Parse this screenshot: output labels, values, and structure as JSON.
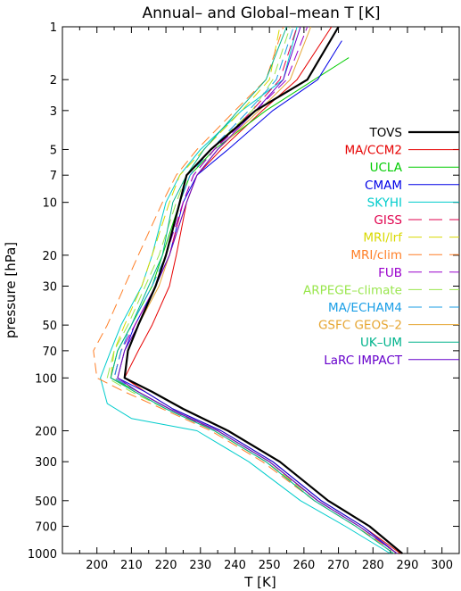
{
  "chart_data": {
    "type": "line",
    "title": "Annual– and Global–mean T [K]",
    "xlabel": "T [K]",
    "ylabel": "pressure [hPa]",
    "xlim": [
      190,
      305
    ],
    "ylim": [
      1000,
      1
    ],
    "y_scale": "log",
    "x_ticks": [
      200,
      210,
      220,
      230,
      240,
      250,
      260,
      270,
      280,
      290,
      300
    ],
    "y_ticks": [
      1000,
      700,
      500,
      300,
      200,
      100,
      70,
      50,
      30,
      20,
      10,
      7,
      5,
      3,
      2,
      1
    ],
    "legend_position": "right",
    "grid": false,
    "series": [
      {
        "name": "TOVS",
        "color": "#000000",
        "dash": "solid",
        "width": 2.2,
        "points": [
          [
            288.5,
            1000
          ],
          [
            279,
            700
          ],
          [
            267,
            500
          ],
          [
            253,
            300
          ],
          [
            238,
            200
          ],
          [
            225,
            150
          ],
          [
            216,
            120
          ],
          [
            208,
            100
          ],
          [
            209,
            70
          ],
          [
            212,
            50
          ],
          [
            217,
            30
          ],
          [
            220,
            20
          ],
          [
            224,
            10
          ],
          [
            226,
            7
          ],
          [
            233,
            5
          ],
          [
            246,
            3
          ],
          [
            261,
            2
          ],
          [
            270,
            1
          ]
        ]
      },
      {
        "name": "MA/CCM2",
        "color": "#e60000",
        "dash": "solid",
        "width": 1,
        "points": [
          [
            288,
            1000
          ],
          [
            277,
            700
          ],
          [
            265,
            500
          ],
          [
            251,
            300
          ],
          [
            236,
            200
          ],
          [
            222,
            150
          ],
          [
            214,
            120
          ],
          [
            208,
            100
          ],
          [
            212,
            70
          ],
          [
            216,
            50
          ],
          [
            221,
            30
          ],
          [
            223,
            20
          ],
          [
            226,
            10
          ],
          [
            229,
            7
          ],
          [
            236,
            5
          ],
          [
            248,
            3
          ],
          [
            258,
            2
          ],
          [
            268,
            1
          ]
        ]
      },
      {
        "name": "UCLA",
        "color": "#00cc00",
        "dash": "solid",
        "width": 1,
        "points": [
          [
            287,
            1000
          ],
          [
            276,
            700
          ],
          [
            264,
            500
          ],
          [
            250,
            300
          ],
          [
            235,
            200
          ],
          [
            221,
            150
          ],
          [
            212,
            120
          ],
          [
            204,
            100
          ],
          [
            206,
            70
          ],
          [
            210,
            50
          ],
          [
            216,
            30
          ],
          [
            219,
            20
          ],
          [
            224,
            10
          ],
          [
            227,
            7
          ],
          [
            234,
            5
          ],
          [
            249,
            3
          ],
          [
            263,
            2
          ],
          [
            273,
            1.5
          ]
        ]
      },
      {
        "name": "CMAM",
        "color": "#0000e6",
        "dash": "solid",
        "width": 1,
        "points": [
          [
            287,
            1000
          ],
          [
            277,
            700
          ],
          [
            265,
            500
          ],
          [
            251,
            300
          ],
          [
            236,
            200
          ],
          [
            222,
            150
          ],
          [
            214,
            120
          ],
          [
            206,
            100
          ],
          [
            208,
            70
          ],
          [
            211,
            50
          ],
          [
            217,
            30
          ],
          [
            221,
            20
          ],
          [
            225,
            10
          ],
          [
            229,
            7
          ],
          [
            238,
            5
          ],
          [
            251,
            3
          ],
          [
            264,
            2
          ],
          [
            271,
            1.2
          ]
        ]
      },
      {
        "name": "SKYHI",
        "color": "#00cccc",
        "dash": "solid",
        "width": 1,
        "points": [
          [
            285,
            1000
          ],
          [
            272,
            700
          ],
          [
            259,
            500
          ],
          [
            244,
            300
          ],
          [
            229,
            200
          ],
          [
            210,
            170
          ],
          [
            203,
            140
          ],
          [
            201,
            100
          ],
          [
            204,
            70
          ],
          [
            207,
            50
          ],
          [
            213,
            30
          ],
          [
            216,
            20
          ],
          [
            220,
            10
          ],
          [
            224,
            7
          ],
          [
            230,
            5
          ],
          [
            242,
            3
          ],
          [
            254,
            2
          ],
          [
            258,
            1
          ]
        ]
      },
      {
        "name": "GISS",
        "color": "#e0004d",
        "dash": "12,6",
        "width": 1,
        "points": [
          [
            287,
            1000
          ],
          [
            276,
            700
          ],
          [
            264,
            500
          ],
          [
            249,
            300
          ],
          [
            234,
            200
          ],
          [
            221,
            150
          ],
          [
            212,
            120
          ],
          [
            205,
            100
          ],
          [
            207,
            70
          ],
          [
            211,
            50
          ],
          [
            217,
            30
          ],
          [
            221,
            20
          ],
          [
            225,
            10
          ],
          [
            228,
            7
          ],
          [
            234,
            5
          ],
          [
            245,
            3
          ],
          [
            253,
            2
          ],
          [
            258,
            1
          ]
        ]
      },
      {
        "name": "MRI/lrf",
        "color": "#d9d900",
        "dash": "12,6",
        "width": 1,
        "points": [
          [
            287,
            1000
          ],
          [
            276,
            700
          ],
          [
            264,
            500
          ],
          [
            249,
            300
          ],
          [
            234,
            200
          ],
          [
            220,
            150
          ],
          [
            211,
            120
          ],
          [
            204,
            100
          ],
          [
            205,
            70
          ],
          [
            208,
            50
          ],
          [
            213,
            30
          ],
          [
            216,
            20
          ],
          [
            221,
            10
          ],
          [
            224,
            7
          ],
          [
            231,
            5
          ],
          [
            242,
            3
          ],
          [
            250,
            2
          ],
          [
            253,
            1
          ]
        ]
      },
      {
        "name": "MRI/clim",
        "color": "#ff7f27",
        "dash": "12,6",
        "width": 1,
        "points": [
          [
            287,
            1000
          ],
          [
            275,
            700
          ],
          [
            263,
            500
          ],
          [
            248,
            300
          ],
          [
            233,
            200
          ],
          [
            219,
            150
          ],
          [
            208,
            120
          ],
          [
            200,
            100
          ],
          [
            199,
            70
          ],
          [
            203,
            50
          ],
          [
            208,
            30
          ],
          [
            212,
            20
          ],
          [
            219,
            10
          ],
          [
            223,
            7
          ],
          [
            229,
            5
          ],
          [
            240,
            3
          ],
          [
            249,
            2
          ],
          [
            254,
            1
          ]
        ]
      },
      {
        "name": "FUB",
        "color": "#9900cc",
        "dash": "12,6",
        "width": 1,
        "points": [
          [
            287,
            1000
          ],
          [
            276,
            700
          ],
          [
            264,
            500
          ],
          [
            250,
            300
          ],
          [
            235,
            200
          ],
          [
            221,
            150
          ],
          [
            212,
            120
          ],
          [
            205,
            100
          ],
          [
            207,
            70
          ],
          [
            211,
            50
          ],
          [
            217,
            30
          ],
          [
            220,
            20
          ],
          [
            225,
            10
          ],
          [
            228,
            7
          ],
          [
            234,
            5
          ],
          [
            246,
            3
          ],
          [
            255,
            2
          ],
          [
            261,
            1
          ]
        ]
      },
      {
        "name": "ARPEGE–climate",
        "color": "#99e64d",
        "dash": "12,6",
        "width": 1,
        "points": [
          [
            286,
            1000
          ],
          [
            275,
            700
          ],
          [
            263,
            500
          ],
          [
            249,
            300
          ],
          [
            234,
            200
          ],
          [
            220,
            150
          ],
          [
            210,
            120
          ],
          [
            203,
            100
          ],
          [
            205,
            70
          ],
          [
            209,
            50
          ],
          [
            214,
            30
          ],
          [
            218,
            20
          ],
          [
            223,
            10
          ],
          [
            226,
            7
          ],
          [
            233,
            5
          ],
          [
            245,
            3
          ],
          [
            251,
            2
          ],
          [
            256,
            1
          ]
        ]
      },
      {
        "name": "MA/ECHAM4",
        "color": "#1a9ee6",
        "dash": "12,6",
        "width": 1,
        "points": [
          [
            287,
            1000
          ],
          [
            276,
            700
          ],
          [
            264,
            500
          ],
          [
            250,
            300
          ],
          [
            235,
            200
          ],
          [
            221,
            150
          ],
          [
            212,
            120
          ],
          [
            205,
            100
          ],
          [
            207,
            70
          ],
          [
            210,
            50
          ],
          [
            216,
            30
          ],
          [
            220,
            20
          ],
          [
            224,
            10
          ],
          [
            227,
            7
          ],
          [
            233,
            5
          ],
          [
            244,
            3
          ],
          [
            252,
            2
          ],
          [
            257,
            1
          ]
        ]
      },
      {
        "name": "GSFC GEOS–2",
        "color": "#e6a633",
        "dash": "solid",
        "width": 1,
        "points": [
          [
            287,
            1000
          ],
          [
            276,
            700
          ],
          [
            264,
            500
          ],
          [
            250,
            300
          ],
          [
            235,
            200
          ],
          [
            221,
            150
          ],
          [
            212,
            120
          ],
          [
            206,
            100
          ],
          [
            208,
            70
          ],
          [
            212,
            50
          ],
          [
            218,
            30
          ],
          [
            221,
            20
          ],
          [
            226,
            10
          ],
          [
            229,
            7
          ],
          [
            235,
            5
          ],
          [
            247,
            3
          ],
          [
            256,
            2
          ],
          [
            262,
            1
          ]
        ]
      },
      {
        "name": "UK–UM",
        "color": "#00b38c",
        "dash": "solid",
        "width": 1,
        "points": [
          [
            286,
            1000
          ],
          [
            275,
            700
          ],
          [
            263,
            500
          ],
          [
            249,
            300
          ],
          [
            234,
            200
          ],
          [
            220,
            150
          ],
          [
            211,
            120
          ],
          [
            204,
            100
          ],
          [
            206,
            70
          ],
          [
            210,
            50
          ],
          [
            215,
            30
          ],
          [
            219,
            20
          ],
          [
            222,
            10
          ],
          [
            226,
            7
          ],
          [
            231,
            5
          ],
          [
            241,
            3
          ],
          [
            249,
            2
          ],
          [
            255,
            1
          ]
        ]
      },
      {
        "name": "LaRC IMPACT",
        "color": "#6600cc",
        "dash": "solid",
        "width": 1,
        "points": [
          [
            287,
            1000
          ],
          [
            276,
            700
          ],
          [
            264,
            500
          ],
          [
            250,
            300
          ],
          [
            235,
            200
          ],
          [
            221,
            150
          ],
          [
            212,
            120
          ],
          [
            206,
            100
          ],
          [
            208,
            70
          ],
          [
            212,
            50
          ],
          [
            217,
            30
          ],
          [
            221,
            20
          ],
          [
            226,
            10
          ],
          [
            229,
            7
          ],
          [
            235,
            5
          ],
          [
            246,
            3
          ],
          [
            254,
            2
          ],
          [
            259,
            1
          ]
        ]
      }
    ]
  }
}
